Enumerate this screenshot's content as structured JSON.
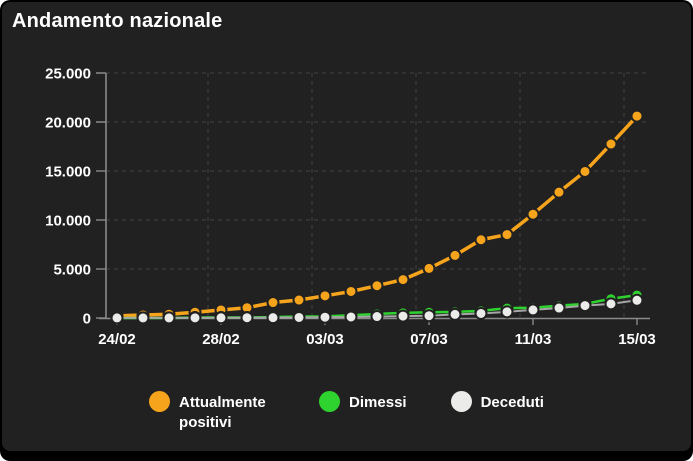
{
  "title": "Andamento nazionale",
  "colors": {
    "panel_background": "#212121",
    "frame": "#000000",
    "text": "#ffffff",
    "axis": "#8a8a8a",
    "grid": "#3d3d3d"
  },
  "legend": [
    {
      "label": "Attualmente positivi",
      "color": "#f7a41d"
    },
    {
      "label": "Dimessi",
      "color": "#2fd32f"
    },
    {
      "label": "Deceduti",
      "color": "#ebebe9"
    }
  ],
  "chart_data": {
    "type": "line",
    "title": "Andamento nazionale",
    "x": [
      "24/02",
      "25/02",
      "26/02",
      "27/02",
      "28/02",
      "29/02",
      "01/03",
      "02/03",
      "03/03",
      "04/03",
      "05/03",
      "06/03",
      "07/03",
      "08/03",
      "09/03",
      "10/03",
      "11/03",
      "12/03",
      "13/03",
      "14/03",
      "15/03"
    ],
    "x_tick_labels": [
      "24/02",
      "28/02",
      "03/03",
      "07/03",
      "11/03",
      "15/03"
    ],
    "y_ticks": [
      0,
      5000,
      10000,
      15000,
      20000,
      25000
    ],
    "y_tick_labels": [
      "0",
      "5.000",
      "10.000",
      "15.000",
      "20.000",
      "25.000"
    ],
    "ylim": [
      0,
      25000
    ],
    "grid": "dashed",
    "legend_position": "bottom",
    "series": [
      {
        "name": "Attualmente positivi",
        "color": "#f7a41d",
        "line_color": "#f7a41d",
        "values": [
          221,
          311,
          385,
          588,
          821,
          1049,
          1577,
          1835,
          2263,
          2706,
          3296,
          3916,
          5061,
          6387,
          7985,
          8514,
          10590,
          12839,
          14955,
          17750,
          20603
        ]
      },
      {
        "name": "Dimessi",
        "color": "#2fd32f",
        "line_color": "#2fd32f",
        "values": [
          1,
          1,
          3,
          45,
          46,
          50,
          83,
          149,
          160,
          276,
          414,
          523,
          589,
          622,
          724,
          1004,
          1045,
          1258,
          1439,
          1966,
          2335
        ]
      },
      {
        "name": "Deceduti",
        "color": "#ebebe9",
        "line_color": "#a6a6a6",
        "values": [
          7,
          10,
          12,
          17,
          21,
          29,
          34,
          52,
          79,
          107,
          148,
          197,
          233,
          366,
          463,
          631,
          827,
          1016,
          1266,
          1441,
          1809
        ]
      }
    ]
  }
}
